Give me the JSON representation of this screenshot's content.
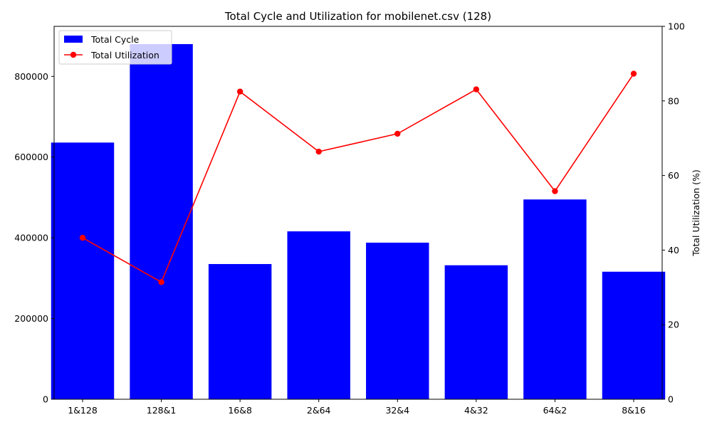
{
  "chart_data": {
    "type": "bar+line",
    "title": "Total Cycle and Utilization for mobilenet.csv (128)",
    "xlabel": "",
    "ylabel_left": "",
    "ylabel_right": "Total Utilization (%)",
    "categories": [
      "1&128",
      "128&1",
      "16&8",
      "2&64",
      "32&4",
      "4&32",
      "64&2",
      "8&16"
    ],
    "series": [
      {
        "name": "Total Cycle",
        "type": "bar",
        "axis": "left",
        "color": "#0000ff",
        "values": [
          636000,
          880000,
          335000,
          416000,
          388000,
          332000,
          495000,
          316000
        ]
      },
      {
        "name": "Total Utilization",
        "type": "line",
        "axis": "right",
        "color": "#ff0000",
        "marker": "circle",
        "values": [
          43.3,
          31.4,
          82.5,
          66.4,
          71.2,
          83.1,
          55.8,
          87.3
        ]
      }
    ],
    "ylim_left": [
      0,
      924000
    ],
    "yticks_left": [
      0,
      200000,
      400000,
      600000,
      800000
    ],
    "ylim_right": [
      0,
      100
    ],
    "yticks_right": [
      0,
      20,
      40,
      60,
      80,
      100
    ],
    "grid": false,
    "legend_position": "upper-left"
  }
}
